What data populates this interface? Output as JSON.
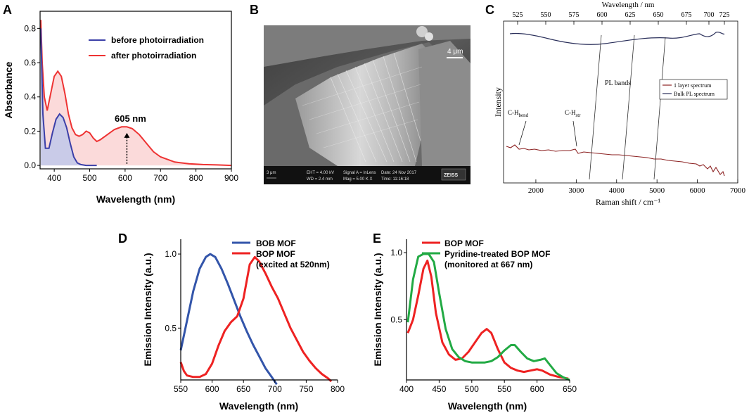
{
  "panel_labels": [
    "A",
    "B",
    "C",
    "D",
    "E"
  ],
  "chart_data": [
    {
      "id": "A",
      "type": "line",
      "xlabel": "Wavelength (nm)",
      "ylabel": "Absorbance",
      "xlim": [
        360,
        900
      ],
      "ylim": [
        -0.02,
        0.9
      ],
      "xticks": [
        400,
        500,
        600,
        700,
        800,
        900
      ],
      "yticks": [
        0.0,
        0.2,
        0.4,
        0.6,
        0.8
      ],
      "ytick_labels": [
        "0.0",
        "0.2",
        "0.4",
        "0.6",
        "0.8"
      ],
      "series": [
        {
          "name": "before photoirradiation",
          "color": "#3b3fa8",
          "fill": "#c9cbe8",
          "x": [
            362,
            368,
            375,
            385,
            395,
            405,
            415,
            425,
            435,
            445,
            455,
            465,
            475,
            490,
            520
          ],
          "y": [
            0.8,
            0.3,
            0.1,
            0.1,
            0.19,
            0.27,
            0.3,
            0.28,
            0.22,
            0.13,
            0.05,
            0.015,
            0.005,
            0.0,
            0.0
          ]
        },
        {
          "name": "after photoirradiation",
          "color": "#ee3333",
          "fill": "#fbdada",
          "x": [
            362,
            366,
            372,
            380,
            390,
            400,
            410,
            420,
            430,
            440,
            450,
            460,
            470,
            480,
            490,
            500,
            510,
            520,
            530,
            550,
            570,
            590,
            605,
            620,
            640,
            660,
            680,
            700,
            740,
            780,
            820,
            860,
            900
          ],
          "y": [
            0.85,
            0.6,
            0.4,
            0.32,
            0.42,
            0.52,
            0.55,
            0.52,
            0.42,
            0.3,
            0.22,
            0.18,
            0.17,
            0.18,
            0.2,
            0.19,
            0.16,
            0.14,
            0.15,
            0.18,
            0.21,
            0.225,
            0.225,
            0.215,
            0.18,
            0.13,
            0.08,
            0.05,
            0.02,
            0.01,
            0.005,
            0.003,
            0.0
          ]
        }
      ],
      "annotation": {
        "text": "605 nm",
        "x": 605,
        "y_from": 0.01,
        "y_to": 0.19
      }
    },
    {
      "id": "C",
      "type": "line",
      "xlabel": "Raman shift / cm⁻¹",
      "ylabel": "Intensity",
      "top_axis_label": "Wavelength / nm",
      "xlim": [
        1200,
        7000
      ],
      "xticks": [
        2000,
        3000,
        4000,
        5000,
        6000,
        7000
      ],
      "top_ticks": [
        "525",
        "550",
        "575",
        "600",
        "625",
        "650",
        "675",
        "700",
        "725"
      ],
      "series": [
        {
          "name": "1 layer spectrum",
          "color": "#8b2020"
        },
        {
          "name": "Bulk PL spectrum",
          "color": "#2a2f5a"
        }
      ],
      "annotations": {
        "pl_bands": "PL bands",
        "c_h_bend": "C-H",
        "c_h_bend_sub": "bend",
        "c_h_str": "C-H",
        "c_h_str_sub": "str"
      }
    },
    {
      "id": "D",
      "type": "line",
      "xlabel": "Wavelength (nm)",
      "ylabel": "Emission Intensity (a.u.)",
      "xlim": [
        550,
        800
      ],
      "ylim": [
        0.15,
        1.1
      ],
      "xticks": [
        550,
        600,
        650,
        700,
        750,
        800
      ],
      "yticks": [
        0.5,
        1.0
      ],
      "ytick_labels": [
        "0.5",
        "1.0"
      ],
      "series": [
        {
          "name": "BOB MOF",
          "color": "#3355aa",
          "x": [
            550,
            560,
            570,
            580,
            590,
            597,
            605,
            615,
            625,
            635,
            645,
            655,
            665,
            675,
            685,
            695,
            703
          ],
          "y": [
            0.35,
            0.55,
            0.75,
            0.9,
            0.98,
            1.0,
            0.98,
            0.9,
            0.8,
            0.69,
            0.58,
            0.48,
            0.39,
            0.31,
            0.23,
            0.17,
            0.12
          ]
        },
        {
          "name": "BOP MOF",
          "color": "#ee2222",
          "x": [
            550,
            555,
            560,
            570,
            580,
            590,
            600,
            610,
            620,
            630,
            640,
            650,
            660,
            668,
            675,
            685,
            695,
            705,
            715,
            725,
            735,
            745,
            755,
            765,
            775,
            785,
            790
          ],
          "y": [
            0.27,
            0.21,
            0.18,
            0.17,
            0.17,
            0.19,
            0.26,
            0.38,
            0.48,
            0.54,
            0.58,
            0.7,
            0.93,
            0.98,
            0.95,
            0.87,
            0.78,
            0.7,
            0.6,
            0.5,
            0.42,
            0.34,
            0.28,
            0.23,
            0.19,
            0.16,
            0.14
          ]
        }
      ],
      "legend": {
        "bob": "BOB MOF",
        "bop": "BOP MOF",
        "bop_note": "(excited at 520nm)"
      }
    },
    {
      "id": "E",
      "type": "line",
      "xlabel": "Wavelength (nm)",
      "ylabel": "Emission Intensity (a.u.)",
      "xlim": [
        400,
        650
      ],
      "ylim": [
        0.05,
        1.1
      ],
      "xticks": [
        400,
        450,
        500,
        550,
        600,
        650
      ],
      "yticks": [
        0.5,
        1.0
      ],
      "ytick_labels": [
        "0.5",
        "1.0"
      ],
      "series": [
        {
          "name": "BOP MOF",
          "color": "#ee2222",
          "x": [
            402,
            410,
            418,
            426,
            432,
            438,
            445,
            455,
            465,
            475,
            485,
            495,
            505,
            515,
            523,
            530,
            540,
            550,
            560,
            570,
            580,
            590,
            600,
            608,
            620,
            635,
            648
          ],
          "y": [
            0.4,
            0.5,
            0.68,
            0.88,
            0.94,
            0.82,
            0.55,
            0.33,
            0.24,
            0.2,
            0.21,
            0.26,
            0.33,
            0.4,
            0.43,
            0.4,
            0.28,
            0.18,
            0.14,
            0.12,
            0.11,
            0.12,
            0.13,
            0.12,
            0.09,
            0.07,
            0.06
          ]
        },
        {
          "name": "Pyridine-treated BOP MOF",
          "color": "#22aa44",
          "x": [
            402,
            410,
            418,
            426,
            434,
            442,
            450,
            460,
            470,
            480,
            490,
            500,
            510,
            520,
            530,
            540,
            550,
            560,
            566,
            575,
            585,
            595,
            605,
            612,
            620,
            630,
            640,
            650
          ],
          "y": [
            0.48,
            0.8,
            0.97,
            0.99,
            0.99,
            0.93,
            0.7,
            0.43,
            0.28,
            0.22,
            0.19,
            0.18,
            0.18,
            0.18,
            0.19,
            0.22,
            0.27,
            0.31,
            0.31,
            0.26,
            0.21,
            0.19,
            0.2,
            0.21,
            0.16,
            0.1,
            0.07,
            0.05
          ]
        }
      ],
      "legend": {
        "bop": "BOP MOF",
        "pyr": "Pyridine-treated BOP MOF",
        "note": "(monitored at 667 nm)"
      }
    }
  ],
  "sem_image": {
    "scale_bar": "4 μm",
    "footer": [
      "3 μm",
      "EHT = 4.00 kV",
      "WD = 2.4 mm",
      "Signal A = InLens",
      "Mag = 5.00 K X",
      "Date: 24 Nov 2017",
      "Time: 11:16:18",
      "ZEISS"
    ]
  }
}
